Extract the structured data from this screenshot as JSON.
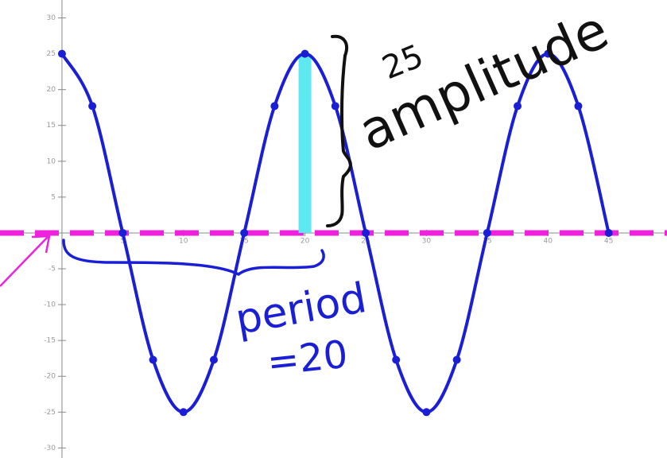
{
  "chart_data": {
    "type": "line",
    "x": [
      0,
      2.5,
      5,
      7.5,
      10,
      12.5,
      15,
      17.5,
      20,
      22.5,
      25,
      27.5,
      30,
      32.5,
      35,
      37.5,
      40,
      42.5,
      45
    ],
    "series": [
      {
        "color": "#1a1fd6",
        "values": [
          25,
          17.7,
          0,
          -17.7,
          -25,
          -17.7,
          0,
          17.7,
          25,
          17.7,
          0,
          -17.7,
          -25,
          -17.7,
          0,
          17.7,
          25,
          17.7,
          0
        ]
      }
    ],
    "xlim": [
      -5.1,
      49.8
    ],
    "ylim": [
      -31.4,
      32.5
    ],
    "xticks": [
      5,
      10,
      15,
      20,
      25,
      30,
      35,
      40,
      45
    ],
    "yticks": [
      30,
      25,
      20,
      15,
      10,
      5,
      -5,
      -10,
      -15,
      -20,
      -25,
      -30
    ],
    "midline": 0,
    "midline_color": "#ee22dd",
    "amplitude_color": "#5ee8f0",
    "annotations": {
      "amplitude_value": "25",
      "amplitude_word": "amplitude",
      "period_word": "period",
      "period_value": "=20"
    }
  }
}
